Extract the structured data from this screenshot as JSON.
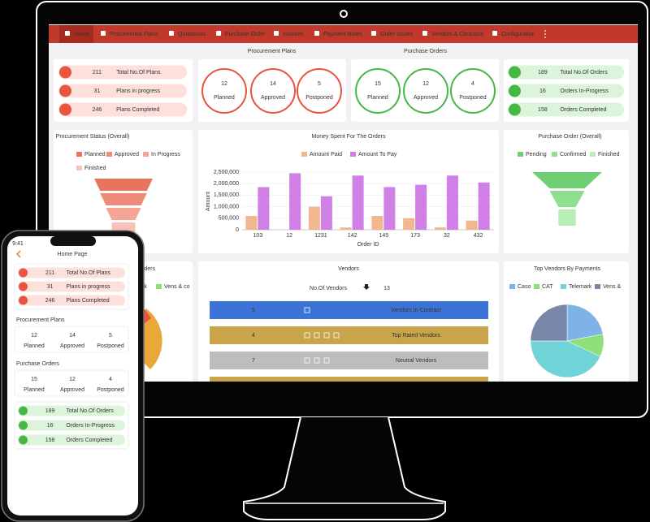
{
  "nav": {
    "items": [
      "Home",
      "Procurement Plans",
      "Quotations",
      "Purchase Order",
      "Invoices",
      "Payment Notes",
      "Order Issues",
      "Vendors & Contracts",
      "Configuration"
    ]
  },
  "plan_stats": [
    {
      "value": 211,
      "label": "Total No.Of Plans"
    },
    {
      "value": 31,
      "label": "Plans in progress"
    },
    {
      "value": 246,
      "label": "Plans Completed"
    }
  ],
  "procurement_plans": {
    "title": "Procurement Plans",
    "items": [
      {
        "value": 12,
        "label": "Planned"
      },
      {
        "value": 14,
        "label": "Approved"
      },
      {
        "value": 5,
        "label": "Postponed"
      }
    ]
  },
  "purchase_orders": {
    "title": "Purchase Orders",
    "items": [
      {
        "value": 15,
        "label": "Planned"
      },
      {
        "value": 12,
        "label": "Approved"
      },
      {
        "value": 4,
        "label": "Postponed"
      }
    ]
  },
  "order_stats": [
    {
      "value": 189,
      "label": "Total No.Of Orders"
    },
    {
      "value": 16,
      "label": "Orders In-Progress"
    },
    {
      "value": 158,
      "label": "Orders Completed"
    }
  ],
  "procurement_status": {
    "type": "funnel",
    "title": "Procurement Status (Overall)",
    "series": [
      {
        "name": "Planned",
        "color": "#e8735f",
        "value": 40
      },
      {
        "name": "Approved",
        "color": "#ef8b78",
        "value": 32
      },
      {
        "name": "In Progress",
        "color": "#f4a596",
        "value": 24
      },
      {
        "name": "Finished",
        "color": "#f8c2b8",
        "value": 16
      }
    ]
  },
  "money_spent": {
    "type": "bar",
    "title": "Money Spent For The Orders",
    "x_label": "Order ID",
    "y_label": "Amount",
    "categories": [
      "103",
      "12",
      "1231",
      "142",
      "145",
      "173",
      "32",
      "432"
    ],
    "series": [
      {
        "name": "Amount Paid",
        "color": "#f2b78e",
        "values": [
          600000,
          0,
          1000000,
          100000,
          600000,
          500000,
          100000,
          400000
        ]
      },
      {
        "name": "Amount To Pay",
        "color": "#d07fe6",
        "values": [
          1850000,
          2450000,
          1450000,
          2350000,
          1850000,
          1950000,
          2350000,
          2050000
        ]
      }
    ],
    "ylim": [
      0,
      2500000
    ],
    "yticks": [
      0,
      {
        "value": 500000,
        "label": "500,000"
      },
      {
        "value": 1000000,
        "label": "1,000,000"
      },
      {
        "value": 1500000,
        "label": "1,500,000"
      },
      {
        "value": 2000000,
        "label": "2,000,000"
      },
      {
        "value": 2500000,
        "label": "2,500,000"
      }
    ]
  },
  "purchase_order_overall": {
    "type": "funnel",
    "title": "Purchase Order (Overall)",
    "series": [
      {
        "name": "Pending",
        "color": "#6fcf74",
        "value": 100
      },
      {
        "name": "Confirmed",
        "color": "#8fdf90",
        "value": 50
      },
      {
        "name": "Finished",
        "color": "#b6eeb5",
        "value": 25
      }
    ]
  },
  "top_vendors_by_orders": {
    "title": "rders",
    "legend": [
      "rk",
      "Vens & co"
    ]
  },
  "vendors": {
    "title": "Vendors",
    "count_label": "No.Of Vendors",
    "count": 13,
    "rows": [
      {
        "value": 5,
        "label": "Vendors In Contract",
        "color": "#3b74d6"
      },
      {
        "value": 4,
        "label": "Top Rated Vendors",
        "color": "#c9a44a"
      },
      {
        "value": 7,
        "label": "Neutral Vendors",
        "color": "#bdbdbd"
      }
    ]
  },
  "top_vendors": {
    "type": "pie",
    "title": "Top Vendors By Payments",
    "series": [
      {
        "name": "Caso",
        "color": "#7fb3e8",
        "value": 22
      },
      {
        "name": "CAT",
        "color": "#8fe07a",
        "value": 10
      },
      {
        "name": "Telemark",
        "color": "#6fd3d8",
        "value": 43
      },
      {
        "name": "Vens &",
        "color": "#7886a8",
        "value": 25
      }
    ]
  },
  "phone": {
    "time": "9:41",
    "title": "Home Page"
  }
}
